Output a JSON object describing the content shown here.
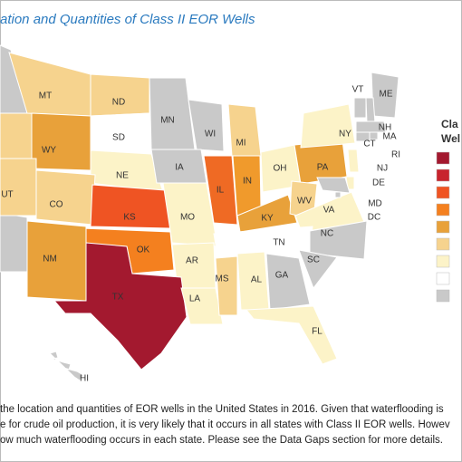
{
  "title": "ation and Quantities of Class II EOR Wells",
  "legend": {
    "title": [
      "Cla",
      "Wel"
    ],
    "colors": [
      "#a3192f",
      "#c8242d",
      "#ef5423",
      "#f4801f",
      "#e8a13a",
      "#f6d38e",
      "#fcf3c8",
      "#ffffff",
      "#c9c9c9"
    ]
  },
  "states": [
    {
      "abbr": "MT",
      "color": "#f6d38e"
    },
    {
      "abbr": "ND",
      "color": "#f6d38e"
    },
    {
      "abbr": "SD",
      "color": "#ffffff"
    },
    {
      "abbr": "MN",
      "color": "#c9c9c9"
    },
    {
      "abbr": "WI",
      "color": "#c9c9c9"
    },
    {
      "abbr": "MI",
      "color": "#f6d38e"
    },
    {
      "abbr": "WY",
      "color": "#e8a13a"
    },
    {
      "abbr": "NE",
      "color": "#fcf3c8"
    },
    {
      "abbr": "IA",
      "color": "#c9c9c9"
    },
    {
      "abbr": "IL",
      "color": "#ef6a24"
    },
    {
      "abbr": "IN",
      "color": "#f09a2c"
    },
    {
      "abbr": "OH",
      "color": "#fcf3c8"
    },
    {
      "abbr": "PA",
      "color": "#e8a13a"
    },
    {
      "abbr": "NY",
      "color": "#fcf3c8"
    },
    {
      "abbr": "UT",
      "color": "#f6d38e"
    },
    {
      "abbr": "CO",
      "color": "#f6d38e"
    },
    {
      "abbr": "KS",
      "color": "#ef5423"
    },
    {
      "abbr": "MO",
      "color": "#fcf3c8"
    },
    {
      "abbr": "KY",
      "color": "#e8a13a"
    },
    {
      "abbr": "WV",
      "color": "#f6d38e"
    },
    {
      "abbr": "VA",
      "color": "#fcf3c8"
    },
    {
      "abbr": "TN",
      "color": "#ffffff"
    },
    {
      "abbr": "NC",
      "color": "#c9c9c9"
    },
    {
      "abbr": "OK",
      "color": "#f4801f"
    },
    {
      "abbr": "AR",
      "color": "#fcf3c8"
    },
    {
      "abbr": "NM",
      "color": "#e8a13a"
    },
    {
      "abbr": "TX",
      "color": "#a3192f"
    },
    {
      "abbr": "LA",
      "color": "#fcf3c8"
    },
    {
      "abbr": "MS",
      "color": "#f6d38e"
    },
    {
      "abbr": "AL",
      "color": "#fcf3c8"
    },
    {
      "abbr": "GA",
      "color": "#c9c9c9"
    },
    {
      "abbr": "SC",
      "color": "#c9c9c9"
    },
    {
      "abbr": "FL",
      "color": "#fcf3c8"
    },
    {
      "abbr": "ME",
      "color": "#c9c9c9"
    },
    {
      "abbr": "VT",
      "color": "#c9c9c9"
    },
    {
      "abbr": "NH",
      "color": "#c9c9c9"
    },
    {
      "abbr": "MA",
      "color": "#c9c9c9"
    },
    {
      "abbr": "CT",
      "color": "#c9c9c9"
    },
    {
      "abbr": "RI",
      "color": "#c9c9c9"
    },
    {
      "abbr": "NJ",
      "color": "#fcf3c8"
    },
    {
      "abbr": "DE",
      "color": "#fcf3c8"
    },
    {
      "abbr": "MD",
      "color": "#c9c9c9"
    },
    {
      "abbr": "DC",
      "color": "#c9c9c9"
    },
    {
      "abbr": "HI",
      "color": "#c9c9c9"
    }
  ],
  "caption": [
    "the location and quantities of EOR wells in the United States in 2016. Given that waterflooding is",
    "e for crude oil production, it is very likely that it occurs in all states with Class II EOR wells. Howev",
    "ow much waterflooding occurs in each state. Please see the Data Gaps section for more details."
  ]
}
